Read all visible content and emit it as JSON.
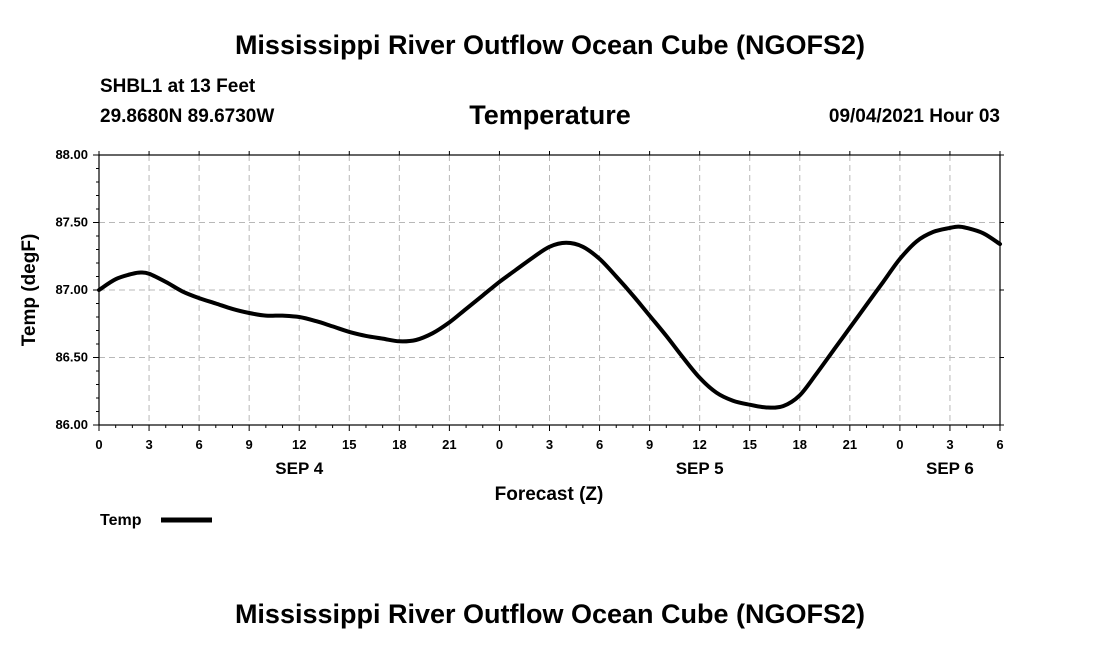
{
  "header": {
    "title": "Mississippi River Outflow Ocean Cube (NGOFS2)",
    "station": "SHBL1 at 13 Feet",
    "coords": "29.8680N  89.6730W",
    "subtitle": "Temperature",
    "datestamp": "09/04/2021 Hour 03"
  },
  "footer": {
    "title": "Mississippi River Outflow Ocean Cube (NGOFS2)"
  },
  "chart_data": {
    "type": "line",
    "title": "Temperature",
    "xlabel": "Forecast (Z)",
    "ylabel": "Temp (degF)",
    "xlim": [
      0,
      54
    ],
    "ylim": [
      86.0,
      88.0
    ],
    "y_ticks": [
      86.0,
      86.5,
      87.0,
      87.5,
      88.0
    ],
    "y_tick_labels": [
      "86.00",
      "86.50",
      "87.00",
      "87.50",
      "88.00"
    ],
    "x_ticks": [
      0,
      3,
      6,
      9,
      12,
      15,
      18,
      21,
      24,
      27,
      30,
      33,
      36,
      39,
      42,
      45,
      48,
      51,
      54
    ],
    "x_tick_labels": [
      "0",
      "3",
      "6",
      "9",
      "12",
      "15",
      "18",
      "21",
      "0",
      "3",
      "6",
      "9",
      "12",
      "15",
      "18",
      "21",
      "0",
      "3",
      "6"
    ],
    "day_labels": [
      {
        "label": "SEP 4",
        "hour": 12
      },
      {
        "label": "SEP 5",
        "hour": 36
      },
      {
        "label": "SEP 6",
        "hour": 51
      }
    ],
    "grid": true,
    "legend": {
      "position": "bottom-left",
      "entries": [
        "Temp"
      ]
    },
    "series": [
      {
        "name": "Temp",
        "color": "#000000",
        "x": [
          0,
          1,
          2,
          2.5,
          3,
          4,
          5,
          6,
          7,
          8,
          9,
          10,
          11,
          12,
          13,
          14,
          15,
          16,
          17,
          18,
          19,
          20,
          21,
          22,
          23,
          24,
          25,
          26,
          27,
          28,
          29,
          30,
          31,
          32,
          33,
          34,
          35,
          36,
          37,
          38,
          39,
          40,
          41,
          42,
          43,
          44,
          45,
          46,
          47,
          48,
          49,
          50,
          51,
          51.5,
          52,
          53,
          54
        ],
        "y": [
          87.0,
          87.08,
          87.12,
          87.13,
          87.12,
          87.06,
          86.99,
          86.94,
          86.9,
          86.86,
          86.83,
          86.81,
          86.81,
          86.8,
          86.77,
          86.73,
          86.69,
          86.66,
          86.64,
          86.62,
          86.63,
          86.68,
          86.76,
          86.86,
          86.96,
          87.06,
          87.15,
          87.24,
          87.32,
          87.35,
          87.32,
          87.23,
          87.1,
          86.96,
          86.81,
          86.66,
          86.5,
          86.35,
          86.24,
          86.18,
          86.15,
          86.13,
          86.14,
          86.22,
          86.38,
          86.55,
          86.72,
          86.89,
          87.06,
          87.23,
          87.36,
          87.43,
          87.46,
          87.47,
          87.46,
          87.42,
          87.34
        ]
      }
    ]
  }
}
